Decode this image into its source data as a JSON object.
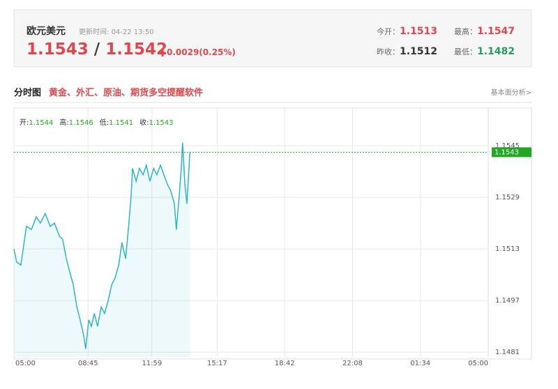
{
  "header": {
    "title": "欧元美元",
    "update_label": "更新时间:",
    "update_time": "04-22 13:50",
    "bid": "1.1543",
    "separator": "/",
    "ask": "1.1542",
    "change": "0.0029(0.25%)",
    "stats": [
      {
        "label": "今开：",
        "value": "1.1513"
      },
      {
        "label": "最高：",
        "value": "1.1547"
      },
      {
        "label": "昨收：",
        "value": "1.1512"
      },
      {
        "label": "最低：",
        "value": "1.1482"
      }
    ]
  },
  "section": {
    "title": "分时图",
    "promo": "黄金、外汇、原油、期货多空提醒软件",
    "link": "基本面分析>"
  },
  "chart_data": {
    "type": "line",
    "ohlc": [
      {
        "label": "开:",
        "value": "1.1544"
      },
      {
        "label": "高:",
        "value": "1.1546"
      },
      {
        "label": "低:",
        "value": "1.1541"
      },
      {
        "label": "收:",
        "value": "1.1543"
      }
    ],
    "x": [
      0,
      8,
      21,
      38,
      53,
      68,
      80,
      95,
      110,
      123,
      138,
      148,
      159,
      169,
      180,
      191,
      201,
      212,
      218,
      227,
      235,
      244,
      254,
      265,
      275,
      286,
      297,
      307,
      318,
      328,
      339,
      349,
      356,
      360,
      371,
      381,
      392,
      402,
      413,
      424,
      434,
      445,
      455,
      466,
      476,
      487,
      493,
      502,
      508,
      512,
      519,
      525,
      534
    ],
    "series": [
      {
        "color": "#2bb5c8",
        "values": [
          1.1513,
          1.1509,
          1.1508,
          1.152,
          1.1519,
          1.1523,
          1.1521,
          1.1524,
          1.152,
          1.1521,
          1.1517,
          1.1516,
          1.151,
          1.1506,
          1.1502,
          1.1495,
          1.1491,
          1.1486,
          1.1482,
          1.1491,
          1.1489,
          1.1493,
          1.1489,
          1.1495,
          1.1493,
          1.1497,
          1.1502,
          1.1504,
          1.1508,
          1.1515,
          1.151,
          1.1521,
          1.153,
          1.1538,
          1.1534,
          1.1538,
          1.1536,
          1.1539,
          1.1534,
          1.1538,
          1.1536,
          1.1539,
          1.1536,
          1.1533,
          1.1531,
          1.1527,
          1.1519,
          1.153,
          1.1538,
          1.1546,
          1.1533,
          1.1527,
          1.1543
        ]
      }
    ],
    "last_value": 1.1543,
    "last_color": "#22a822",
    "xlim": [
      0,
      1440
    ],
    "xticks": [
      {
        "value": 0,
        "label": "05:00"
      },
      {
        "value": 225,
        "label": "08:45"
      },
      {
        "value": 419,
        "label": "11:59"
      },
      {
        "value": 617,
        "label": "15:17"
      },
      {
        "value": 822,
        "label": "18:42"
      },
      {
        "value": 1028,
        "label": "22:08"
      },
      {
        "value": 1234,
        "label": "01:34"
      },
      {
        "value": 1440,
        "label": "05:00"
      }
    ],
    "ylim": [
      1.14795,
      1.15567
    ],
    "yticks": [
      1.1481,
      1.1497,
      1.1513,
      1.1529,
      1.1545
    ],
    "grid": true
  }
}
